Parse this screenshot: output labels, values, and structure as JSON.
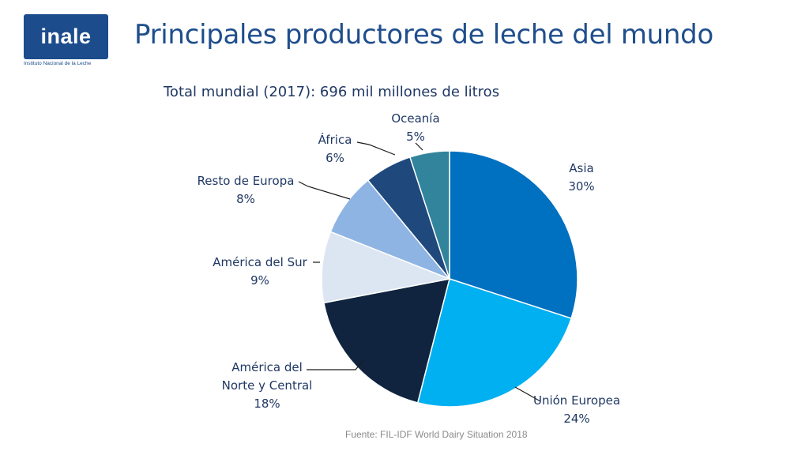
{
  "logo": {
    "text": "inale",
    "subtitle": "Instituto Nacional de la Leche"
  },
  "page_title": "Principales productores de leche del mundo",
  "source": "Fuente: FIL-IDF World Dairy Situation 2018",
  "chart_data": {
    "type": "pie",
    "title": "Total mundial (2017): 696 mil millones de litros",
    "slices": [
      {
        "label": [
          "Asia"
        ],
        "pct_label": "30%",
        "value": 30,
        "color": "#0070c0"
      },
      {
        "label": [
          "Unión Europea"
        ],
        "pct_label": "24%",
        "value": 24,
        "color": "#00b0f0"
      },
      {
        "label": [
          "América del",
          "Norte y Central"
        ],
        "pct_label": "18%",
        "value": 18,
        "color": "#10243f"
      },
      {
        "label": [
          "América del Sur"
        ],
        "pct_label": "9%",
        "value": 9,
        "color": "#dce6f2"
      },
      {
        "label": [
          "Resto de Europa"
        ],
        "pct_label": "8%",
        "value": 8,
        "color": "#8eb4e3"
      },
      {
        "label": [
          "África"
        ],
        "pct_label": "6%",
        "value": 6,
        "color": "#1f497d"
      },
      {
        "label": [
          "Oceanía"
        ],
        "pct_label": "5%",
        "value": 5,
        "color": "#31849b"
      }
    ],
    "legend": "none",
    "start": "top, clockwise"
  }
}
